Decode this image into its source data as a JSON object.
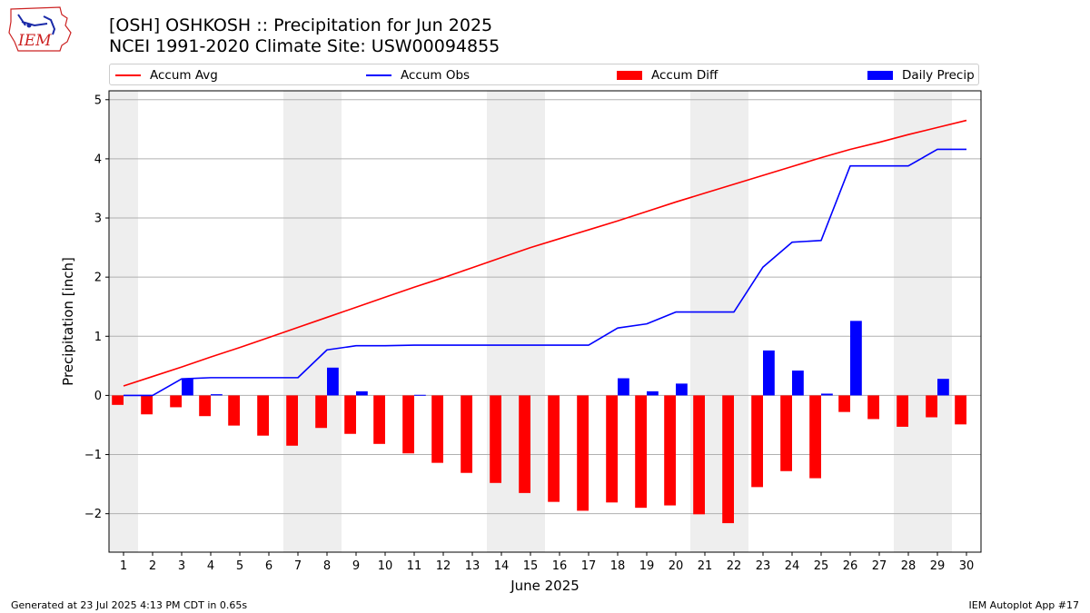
{
  "header": {
    "title_line1": "[OSH] OSHKOSH :: Precipitation for Jun 2025",
    "title_line2": "NCEI 1991-2020 Climate Site: USW00094855",
    "logo_text": "IEM"
  },
  "footer": {
    "left": "Generated at 23 Jul 2025 4:13 PM CDT in 0.65s",
    "right": "IEM Autoplot App #17"
  },
  "colors": {
    "accum_avg": "#ff0000",
    "accum_obs": "#0000ff",
    "accum_diff": "#ff0000",
    "daily_precip": "#0000ff",
    "weekend_shade": "#eeeeee",
    "grid": "#b0b0b0"
  },
  "chart_data": {
    "type": "bar",
    "xlabel": "June 2025",
    "ylabel": "Precipitation [inch]",
    "ylim": [
      -2.65,
      5.15
    ],
    "yticks": [
      -2,
      -1,
      0,
      1,
      2,
      3,
      4,
      5
    ],
    "ytick_labels": [
      "−2",
      "−1",
      "0",
      "1",
      "2",
      "3",
      "4",
      "5"
    ],
    "grid": "horizontal",
    "legend_position": "top",
    "x": [
      1,
      2,
      3,
      4,
      5,
      6,
      7,
      8,
      9,
      10,
      11,
      12,
      13,
      14,
      15,
      16,
      17,
      18,
      19,
      20,
      21,
      22,
      23,
      24,
      25,
      26,
      27,
      28,
      29,
      30
    ],
    "shaded_weekend_days": [
      1,
      7,
      8,
      14,
      15,
      21,
      22,
      28,
      29
    ],
    "series": [
      {
        "name": "Accum Avg",
        "kind": "line",
        "values": [
          0.16,
          0.32,
          0.48,
          0.65,
          0.81,
          0.98,
          1.15,
          1.32,
          1.49,
          1.66,
          1.83,
          1.99,
          2.16,
          2.33,
          2.5,
          2.65,
          2.8,
          2.95,
          3.11,
          3.27,
          3.42,
          3.57,
          3.72,
          3.87,
          4.02,
          4.16,
          4.28,
          4.41,
          4.53,
          4.65
        ]
      },
      {
        "name": "Accum Obs",
        "kind": "line",
        "values": [
          0.0,
          0.0,
          0.28,
          0.3,
          0.3,
          0.3,
          0.3,
          0.77,
          0.84,
          0.84,
          0.85,
          0.85,
          0.85,
          0.85,
          0.85,
          0.85,
          0.85,
          1.14,
          1.21,
          1.41,
          1.41,
          1.41,
          2.17,
          2.59,
          2.62,
          3.88,
          3.88,
          3.88,
          4.16,
          4.16
        ]
      },
      {
        "name": "Accum Diff",
        "kind": "bar",
        "values": [
          -0.16,
          -0.32,
          -0.2,
          -0.35,
          -0.51,
          -0.68,
          -0.85,
          -0.55,
          -0.65,
          -0.82,
          -0.98,
          -1.14,
          -1.31,
          -1.48,
          -1.65,
          -1.8,
          -1.95,
          -1.81,
          -1.9,
          -1.86,
          -2.01,
          -2.16,
          -1.55,
          -1.28,
          -1.4,
          -0.28,
          -0.4,
          -0.53,
          -0.37,
          -0.49
        ]
      },
      {
        "name": "Daily Precip",
        "kind": "bar",
        "values": [
          0.0,
          0.0,
          0.28,
          0.02,
          0.0,
          0.0,
          0.0,
          0.47,
          0.07,
          0.0,
          0.01,
          0.0,
          0.0,
          0.0,
          0.0,
          0.0,
          0.0,
          0.29,
          0.07,
          0.2,
          0.0,
          0.0,
          0.76,
          0.42,
          0.03,
          1.26,
          0.0,
          0.0,
          0.28,
          0.0
        ]
      }
    ]
  }
}
